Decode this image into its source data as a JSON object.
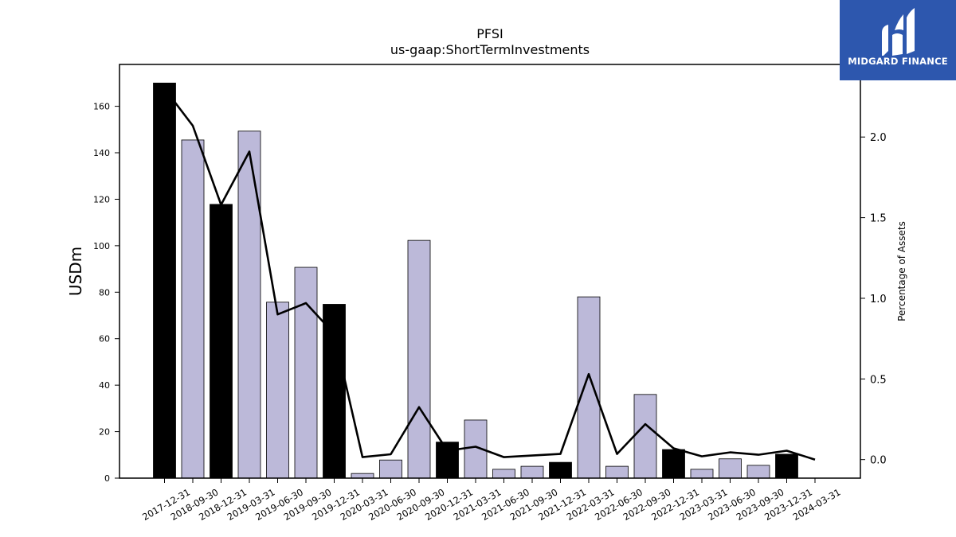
{
  "logo": {
    "text": "MIDGARD FINANCE",
    "background": "#2d57ae"
  },
  "chart_data": {
    "type": "bar",
    "title": "PFSI",
    "subtitle": "us-gaap:ShortTermInvestments",
    "ylabel": "USDm",
    "y2label": "Percentage of Assets",
    "ylim": [
      0,
      178
    ],
    "y2lim": [
      -0.115,
      2.45
    ],
    "yticks": [
      0,
      20,
      40,
      60,
      80,
      100,
      120,
      140,
      160
    ],
    "y2ticks": [
      0.0,
      0.5,
      1.0,
      1.5,
      2.0
    ],
    "y2tick_labels": [
      "0.0",
      "0.5",
      "1.0",
      "1.5",
      "2.0"
    ],
    "categories": [
      "2017-12-31",
      "2018-09-30",
      "2018-12-31",
      "2019-03-31",
      "2019-06-30",
      "2019-09-30",
      "2019-12-31",
      "2020-03-31",
      "2020-06-30",
      "2020-09-30",
      "2020-12-31",
      "2021-03-31",
      "2021-06-30",
      "2021-09-30",
      "2021-12-31",
      "2022-03-31",
      "2022-06-30",
      "2022-09-30",
      "2022-12-31",
      "2023-03-31",
      "2023-06-30",
      "2023-09-30",
      "2023-12-31",
      "2024-03-31"
    ],
    "series": [
      {
        "type": "bar",
        "values": [
          170,
          145.5,
          117.8,
          149.3,
          75.7,
          90.7,
          74.8,
          2.0,
          7.8,
          102.3,
          15.5,
          25.0,
          3.8,
          5.1,
          6.8,
          78.0,
          5.1,
          36.0,
          12.3,
          3.8,
          8.3,
          5.5,
          10.3,
          0
        ],
        "year_end": [
          true,
          false,
          true,
          false,
          false,
          false,
          true,
          false,
          false,
          false,
          true,
          false,
          false,
          false,
          true,
          false,
          false,
          false,
          true,
          false,
          false,
          false,
          true,
          false
        ]
      },
      {
        "type": "line",
        "axis": "right",
        "values": [
          2.3,
          2.07,
          1.58,
          1.91,
          0.9,
          0.97,
          0.78,
          0.015,
          0.033,
          0.325,
          0.055,
          0.08,
          0.015,
          0.025,
          0.035,
          0.53,
          0.035,
          0.22,
          0.07,
          0.02,
          0.045,
          0.03,
          0.055,
          0.0
        ]
      }
    ],
    "colors": {
      "year_end_bar": "#000000",
      "quarter_bar": "#bcb9d9",
      "bar_edge": "#000000",
      "line": "#000000"
    },
    "grid": false,
    "legend": "none"
  }
}
